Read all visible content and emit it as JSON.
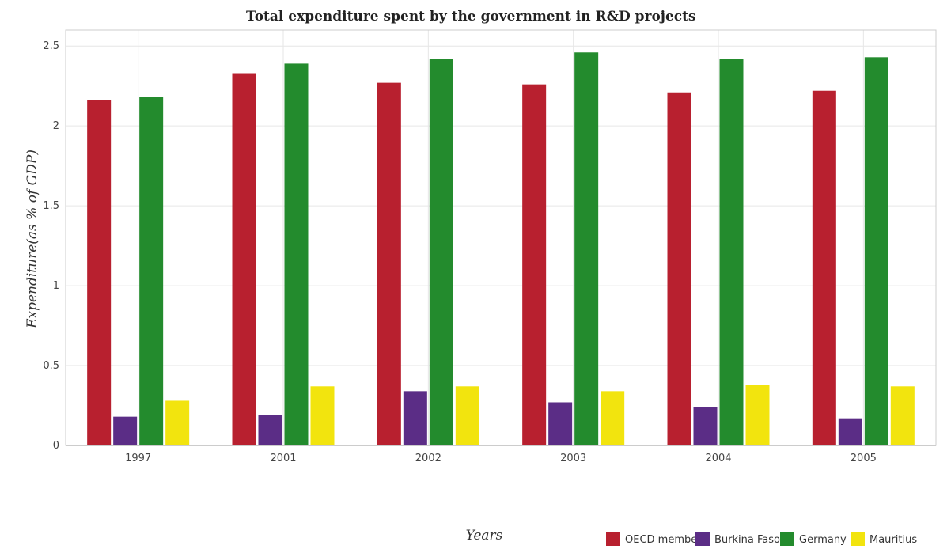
{
  "chart_data": {
    "type": "bar",
    "title": "Total expenditure spent by the government in R&D projects",
    "xlabel": "Years",
    "ylabel": "Expenditure(as % of GDP)",
    "categories": [
      "1997",
      "2001",
      "2002",
      "2003",
      "2004",
      "2005"
    ],
    "ylim": [
      0,
      2.6
    ],
    "yticks": [
      0,
      0.5,
      1,
      1.5,
      2,
      2.5
    ],
    "ytick_labels": [
      "0",
      "0.5",
      "1",
      "1.5",
      "2",
      "2.5"
    ],
    "grid": true,
    "legend_position": "bottom-right",
    "series": [
      {
        "name": "OECD members",
        "color": "#b8202f",
        "values": [
          2.16,
          2.33,
          2.27,
          2.26,
          2.21,
          2.22
        ]
      },
      {
        "name": "Burkina Faso",
        "color": "#5b2d86",
        "values": [
          0.18,
          0.19,
          0.34,
          0.27,
          0.24,
          0.17
        ]
      },
      {
        "name": "Germany",
        "color": "#238b2d",
        "values": [
          2.18,
          2.39,
          2.42,
          2.46,
          2.42,
          2.43
        ]
      },
      {
        "name": "Mauritius",
        "color": "#f2e40e",
        "values": [
          0.28,
          0.37,
          0.37,
          0.34,
          0.38,
          0.37
        ]
      }
    ]
  }
}
